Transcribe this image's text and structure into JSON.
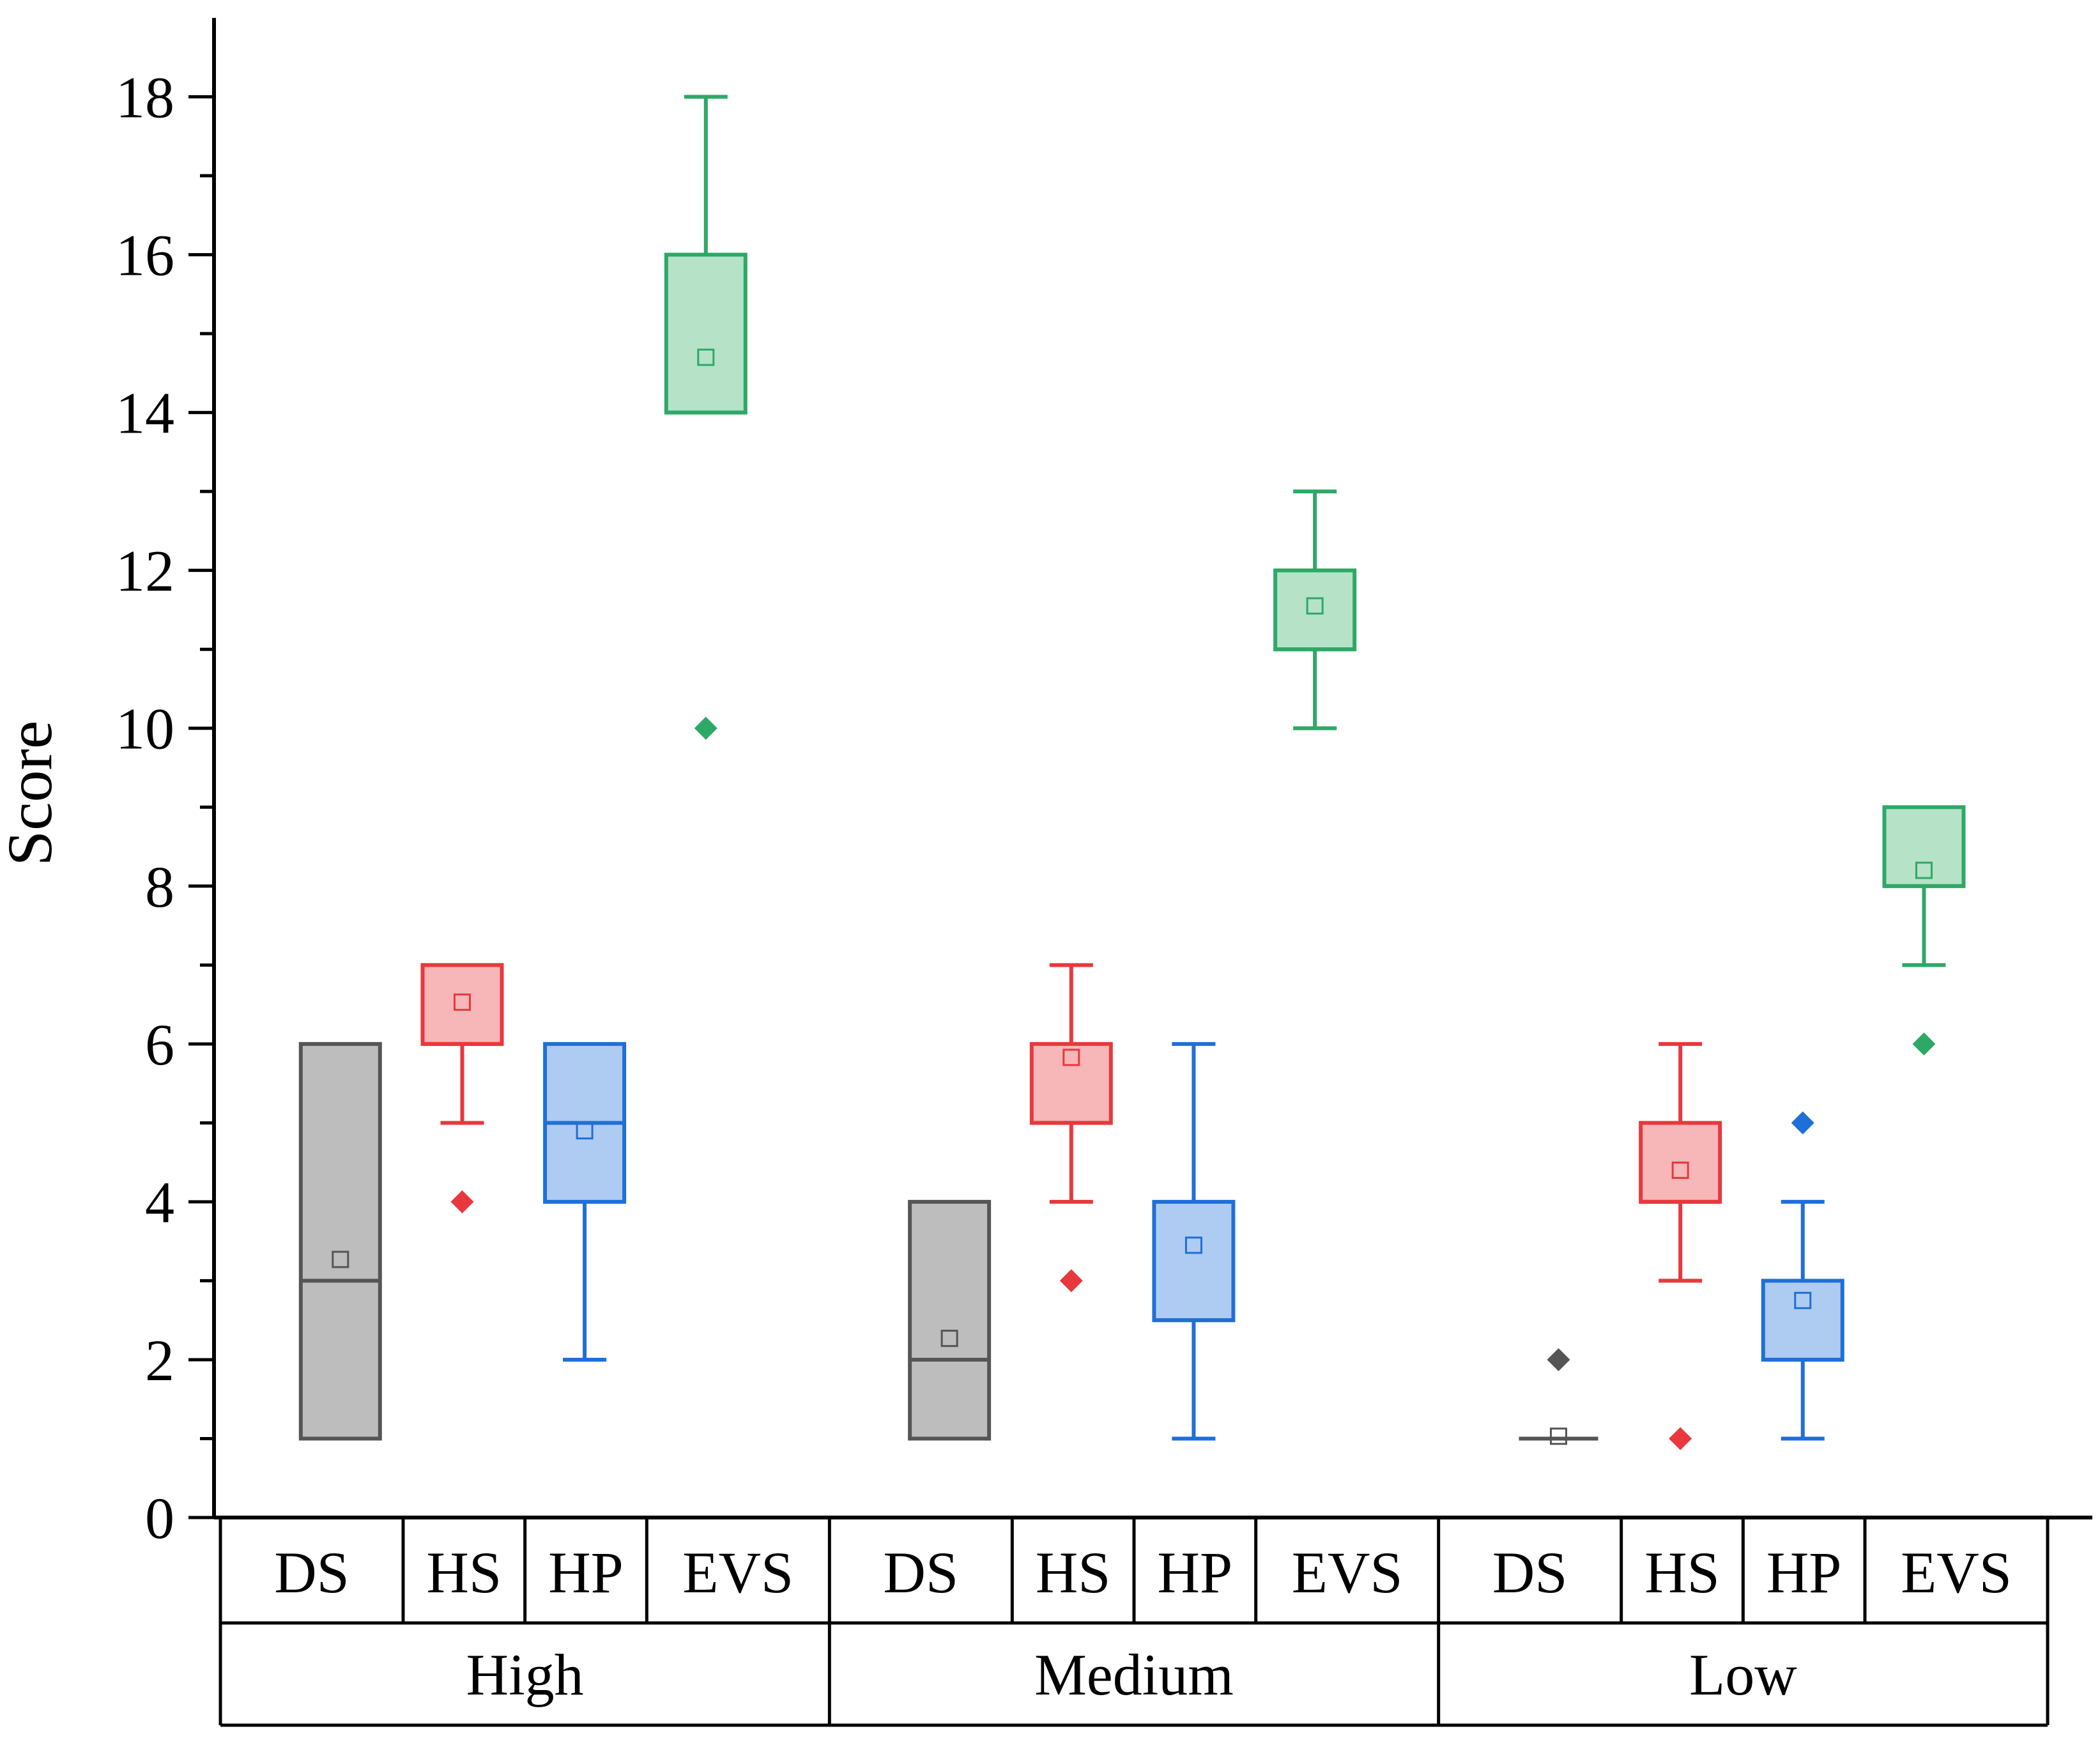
{
  "chart_data": {
    "type": "boxplot",
    "title": "",
    "ylabel": "Score",
    "xlabel": "",
    "ylim": [
      0,
      19
    ],
    "y_ticks": [
      0,
      2,
      4,
      6,
      8,
      10,
      12,
      14,
      16,
      18
    ],
    "y_tick_labels": [
      "0",
      "2",
      "4",
      "6",
      "8",
      "10",
      "12",
      "14",
      "16",
      "18"
    ],
    "y_minor_step": 1,
    "series_colors": {
      "DS": {
        "stroke": "#555555",
        "fill": "#bdbdbd"
      },
      "HS": {
        "stroke": "#e8383d",
        "fill": "#f7b6b8"
      },
      "HP": {
        "stroke": "#1f6fd8",
        "fill": "#aecbf2"
      },
      "EVS": {
        "stroke": "#2ea866",
        "fill": "#b6e2c8"
      }
    },
    "groups": [
      {
        "name": "High",
        "boxes": [
          {
            "label": "DS",
            "whisker_low": 1,
            "q1": 1,
            "median": 3,
            "q3": 6,
            "whisker_high": 6,
            "mean": 3.27,
            "outliers": []
          },
          {
            "label": "HS",
            "whisker_low": 5,
            "q1": 6,
            "median": 6,
            "q3": 7,
            "whisker_high": 7,
            "mean": 6.53,
            "outliers": [
              4
            ]
          },
          {
            "label": "HP",
            "whisker_low": 2,
            "q1": 4,
            "median": 5,
            "q3": 6,
            "whisker_high": 6,
            "mean": 4.9,
            "outliers": []
          },
          {
            "label": "EVS",
            "whisker_low": 14,
            "q1": 14,
            "median": 14,
            "q3": 16,
            "whisker_high": 18,
            "mean": 14.7,
            "outliers": [
              10
            ]
          }
        ]
      },
      {
        "name": "Medium",
        "boxes": [
          {
            "label": "DS",
            "whisker_low": 1,
            "q1": 1,
            "median": 2,
            "q3": 4,
            "whisker_high": 4,
            "mean": 2.27,
            "outliers": []
          },
          {
            "label": "HS",
            "whisker_low": 4,
            "q1": 5,
            "median": 5,
            "q3": 6,
            "whisker_high": 7,
            "mean": 5.83,
            "outliers": [
              3
            ]
          },
          {
            "label": "HP",
            "whisker_low": 1,
            "q1": 2.5,
            "median": 2.5,
            "q3": 4,
            "whisker_high": 6,
            "mean": 3.45,
            "outliers": []
          },
          {
            "label": "EVS",
            "whisker_low": 10,
            "q1": 11,
            "median": 11,
            "q3": 12,
            "whisker_high": 13,
            "mean": 11.55,
            "outliers": []
          }
        ]
      },
      {
        "name": "Low",
        "boxes": [
          {
            "label": "DS",
            "whisker_low": 1,
            "q1": 1,
            "median": 1,
            "q3": 1,
            "whisker_high": 1,
            "mean": 1.03,
            "outliers": [
              2
            ]
          },
          {
            "label": "HS",
            "whisker_low": 3,
            "q1": 4,
            "median": 4,
            "q3": 5,
            "whisker_high": 6,
            "mean": 4.4,
            "outliers": [
              1
            ]
          },
          {
            "label": "HP",
            "whisker_low": 1,
            "q1": 2,
            "median": 2,
            "q3": 3,
            "whisker_high": 4,
            "mean": 2.75,
            "outliers": [
              5
            ]
          },
          {
            "label": "EVS",
            "whisker_low": 7,
            "q1": 8,
            "median": 8,
            "q3": 9,
            "whisker_high": 9,
            "mean": 8.2,
            "outliers": [
              6
            ]
          }
        ]
      }
    ]
  }
}
